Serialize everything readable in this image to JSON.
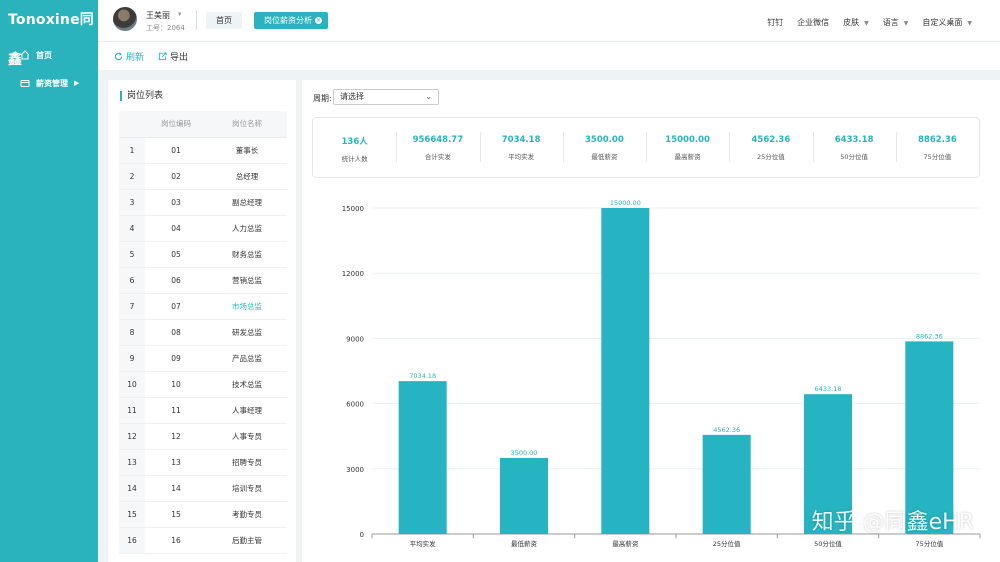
{
  "app": {
    "logo": "Tonoxine同鑫"
  },
  "sidebar": {
    "items": [
      {
        "label": "首页",
        "icon": "home-icon"
      },
      {
        "label": "薪资管理",
        "icon": "wallet-icon"
      }
    ]
  },
  "user": {
    "name": "王美丽",
    "id_text": "工号：2064"
  },
  "tabs": [
    {
      "label": "首页"
    },
    {
      "label": "岗位薪资分析"
    }
  ],
  "top_menu": [
    {
      "label": "钉钉",
      "dropdown": false
    },
    {
      "label": "企业微信",
      "dropdown": false
    },
    {
      "label": "皮肤",
      "dropdown": true
    },
    {
      "label": "语言",
      "dropdown": true
    },
    {
      "label": "自定义桌面",
      "dropdown": true
    }
  ],
  "toolbar": {
    "refresh_label": "刷新",
    "export_label": "导出"
  },
  "position_list": {
    "title": "岗位列表",
    "columns": [
      "",
      "岗位编码",
      "岗位名称"
    ],
    "rows": [
      {
        "idx": "1",
        "code": "01",
        "name": "董事长"
      },
      {
        "idx": "2",
        "code": "02",
        "name": "总经理"
      },
      {
        "idx": "3",
        "code": "03",
        "name": "副总经理"
      },
      {
        "idx": "4",
        "code": "04",
        "name": "人力总监"
      },
      {
        "idx": "5",
        "code": "05",
        "name": "财务总监"
      },
      {
        "idx": "6",
        "code": "06",
        "name": "营销总监"
      },
      {
        "idx": "7",
        "code": "07",
        "name": "市场总监"
      },
      {
        "idx": "8",
        "code": "08",
        "name": "研发总监"
      },
      {
        "idx": "9",
        "code": "09",
        "name": "产品总监"
      },
      {
        "idx": "10",
        "code": "10",
        "name": "技术总监"
      },
      {
        "idx": "11",
        "code": "11",
        "name": "人事经理"
      },
      {
        "idx": "12",
        "code": "12",
        "name": "人事专员"
      },
      {
        "idx": "13",
        "code": "13",
        "name": "招聘专员"
      },
      {
        "idx": "14",
        "code": "14",
        "name": "培训专员"
      },
      {
        "idx": "15",
        "code": "15",
        "name": "考勤专员"
      },
      {
        "idx": "16",
        "code": "16",
        "name": "后勤主管"
      }
    ],
    "selected_index": 6
  },
  "filter": {
    "period_label": "周期:",
    "period_value": "请选择"
  },
  "stats": [
    {
      "value": "136人",
      "label": "统计人数"
    },
    {
      "value": "956648.77",
      "label": "合计实发"
    },
    {
      "value": "7034.18",
      "label": "平均实发"
    },
    {
      "value": "3500.00",
      "label": "最低薪资"
    },
    {
      "value": "15000.00",
      "label": "最高薪资"
    },
    {
      "value": "4562.36",
      "label": "25分位值"
    },
    {
      "value": "6433.18",
      "label": "50分位值"
    },
    {
      "value": "8862.36",
      "label": "75分位值"
    }
  ],
  "colors": {
    "accent": "#2ab3bd",
    "bar": "#26b3c2"
  },
  "chart_data": {
    "type": "bar",
    "categories": [
      "平均实发",
      "最低薪资",
      "最高薪资",
      "25分位值",
      "50分位值",
      "75分位值"
    ],
    "values": [
      7034.18,
      3500.0,
      15000.0,
      4562.36,
      6433.18,
      8862.36
    ],
    "data_labels": [
      "7034.18",
      "3500.00",
      "15000.00",
      "4562.36",
      "6433.18",
      "8862.36"
    ],
    "yticks": [
      0,
      3000,
      6000,
      9000,
      12000,
      15000
    ],
    "ylim": [
      0,
      15000
    ],
    "grid": true
  },
  "watermark": "知乎 @同鑫eHR"
}
